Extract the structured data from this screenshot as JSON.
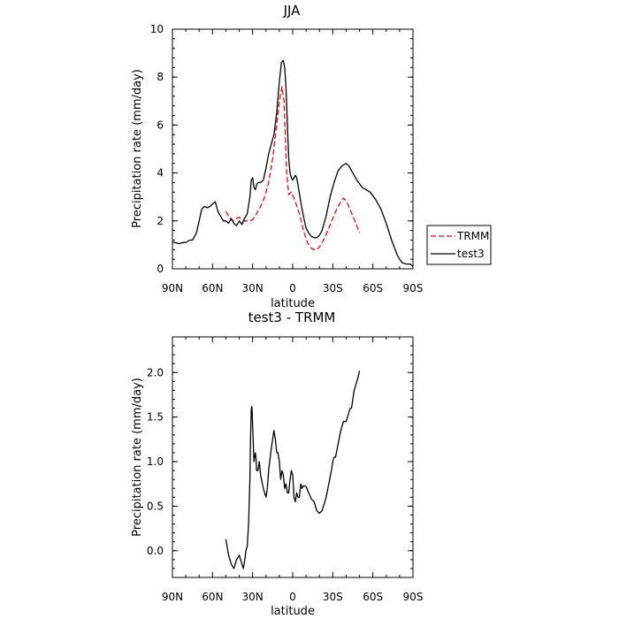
{
  "chart_data": [
    {
      "type": "line",
      "title": "JJA",
      "xlabel": "latitude",
      "ylabel": "Precipitation rate (mm/day)",
      "xlim": [
        90,
        -90
      ],
      "ylim": [
        0,
        10
      ],
      "x_tick_values": [
        90,
        60,
        30,
        0,
        -30,
        -60,
        -90
      ],
      "x_tick_labels": [
        "90N",
        "60N",
        "30N",
        "0",
        "30S",
        "60S",
        "90S"
      ],
      "y_tick_values": [
        0,
        2,
        4,
        6,
        8,
        10
      ],
      "y_tick_labels": [
        "0",
        "2",
        "4",
        "6",
        "8",
        "10"
      ],
      "grid": false,
      "legend_position": "right",
      "series": [
        {
          "name": "TRMM",
          "style": "dashed",
          "color": "#ff0000",
          "x": [
            50,
            48,
            45,
            42,
            40,
            37,
            35,
            32,
            30,
            27,
            24,
            21,
            18,
            15,
            12,
            10,
            8,
            6.5,
            5.5,
            4.5,
            3,
            1,
            -2,
            -5,
            -8,
            -11,
            -14,
            -17,
            -20,
            -22,
            -24,
            -27,
            -30,
            -33,
            -36,
            -38,
            -40,
            -42,
            -45,
            -48,
            -50
          ],
          "values": [
            2.4,
            2.2,
            2.0,
            2.1,
            2.15,
            2.0,
            2.0,
            2.0,
            2.05,
            2.3,
            2.6,
            3.0,
            3.6,
            4.6,
            6.0,
            7.0,
            7.6,
            7.0,
            5.5,
            4.0,
            3.1,
            3.2,
            2.8,
            2.3,
            1.6,
            1.1,
            0.85,
            0.78,
            0.9,
            1.1,
            1.3,
            1.7,
            2.1,
            2.5,
            2.8,
            2.95,
            2.85,
            2.6,
            2.2,
            1.8,
            1.5
          ]
        },
        {
          "name": "test3",
          "style": "solid",
          "color": "#000000",
          "x": [
            90,
            88,
            85,
            82,
            80,
            77,
            75,
            72,
            70,
            68,
            66,
            64,
            62,
            60,
            58,
            56,
            54,
            52,
            50,
            48,
            46,
            44,
            42,
            40,
            38,
            36,
            34,
            32,
            31,
            30,
            29,
            28,
            27,
            26,
            24,
            22,
            20,
            18,
            16,
            14,
            12,
            10,
            8.5,
            7,
            6,
            5,
            4,
            3,
            2,
            1,
            0,
            -1,
            -2,
            -3,
            -4,
            -6,
            -8,
            -10,
            -12,
            -14,
            -16,
            -18,
            -20,
            -22,
            -25,
            -28,
            -31,
            -34,
            -37,
            -40,
            -42,
            -45,
            -48,
            -52,
            -55,
            -58,
            -62,
            -66,
            -70,
            -74,
            -78,
            -80,
            -82,
            -85,
            -88,
            -90
          ],
          "values": [
            1.1,
            1.1,
            1.05,
            1.1,
            1.1,
            1.2,
            1.2,
            1.5,
            2.0,
            2.5,
            2.6,
            2.55,
            2.6,
            2.7,
            2.8,
            2.4,
            2.2,
            2.0,
            2.0,
            1.9,
            2.1,
            1.9,
            1.8,
            2.0,
            1.85,
            2.1,
            2.3,
            3.0,
            3.7,
            3.8,
            3.4,
            3.3,
            3.5,
            3.6,
            3.6,
            3.7,
            4.2,
            4.8,
            5.2,
            5.6,
            6.5,
            7.8,
            8.6,
            8.7,
            8.4,
            7.6,
            6.0,
            4.6,
            4.0,
            3.8,
            3.7,
            3.8,
            3.9,
            3.8,
            3.5,
            2.8,
            2.2,
            1.7,
            1.5,
            1.35,
            1.3,
            1.3,
            1.4,
            1.6,
            2.2,
            3.0,
            3.6,
            4.1,
            4.3,
            4.4,
            4.3,
            4.0,
            3.7,
            3.4,
            3.3,
            3.2,
            2.9,
            2.5,
            1.9,
            1.2,
            0.6,
            0.4,
            0.25,
            0.2,
            0.2,
            0.1
          ]
        }
      ]
    },
    {
      "type": "line",
      "title": "test3 - TRMM",
      "xlabel": "latitude",
      "ylabel": "Precipitation rate (mm/day)",
      "xlim": [
        90,
        -90
      ],
      "ylim": [
        -0.3,
        2.4
      ],
      "x_tick_values": [
        90,
        60,
        30,
        0,
        -30,
        -60,
        -90
      ],
      "x_tick_labels": [
        "90N",
        "60N",
        "30N",
        "0",
        "30S",
        "60S",
        "90S"
      ],
      "y_tick_values": [
        0,
        0.5,
        1,
        1.5,
        2
      ],
      "y_tick_labels": [
        "0.0",
        "0.5",
        "1.0",
        "1.5",
        "2.0"
      ],
      "grid": false,
      "series": [
        {
          "style": "solid",
          "color": "#000000",
          "x": [
            50,
            48,
            46,
            44,
            42,
            40,
            38,
            37,
            36,
            35,
            34,
            33,
            32,
            31.5,
            31,
            30.5,
            30,
            29,
            28,
            27.5,
            27,
            26,
            25,
            24,
            22,
            20,
            19,
            18,
            16,
            15,
            14,
            13,
            12,
            11,
            10,
            9,
            8,
            7,
            6,
            5,
            4,
            3,
            2,
            1,
            0,
            -1,
            -2,
            -3,
            -4,
            -5,
            -6,
            -7,
            -8,
            -10,
            -12,
            -14,
            -16,
            -18,
            -20,
            -22,
            -23,
            -24,
            -25,
            -27,
            -29,
            -30,
            -31,
            -32,
            -34,
            -36,
            -38,
            -40,
            -42,
            -43,
            -44,
            -45,
            -46,
            -47,
            -48,
            -49,
            -50
          ],
          "values": [
            0.13,
            -0.05,
            -0.15,
            -0.2,
            -0.1,
            -0.05,
            -0.15,
            -0.2,
            -0.12,
            0.0,
            0.05,
            0.3,
            0.8,
            1.3,
            1.6,
            1.62,
            1.4,
            1.0,
            1.1,
            1.05,
            0.9,
            0.9,
            1.0,
            0.85,
            0.7,
            0.6,
            0.7,
            0.9,
            1.15,
            1.25,
            1.35,
            1.25,
            1.1,
            1.1,
            1.0,
            0.8,
            0.9,
            0.85,
            0.7,
            0.75,
            0.65,
            0.65,
            0.8,
            0.9,
            0.85,
            0.6,
            0.55,
            0.65,
            0.6,
            0.6,
            0.75,
            0.7,
            0.73,
            0.72,
            0.65,
            0.58,
            0.55,
            0.45,
            0.42,
            0.45,
            0.5,
            0.55,
            0.6,
            0.75,
            0.9,
            1.0,
            1.05,
            1.05,
            1.2,
            1.35,
            1.45,
            1.45,
            1.55,
            1.6,
            1.6,
            1.7,
            1.8,
            1.85,
            1.9,
            1.95,
            2.02
          ]
        }
      ]
    }
  ]
}
